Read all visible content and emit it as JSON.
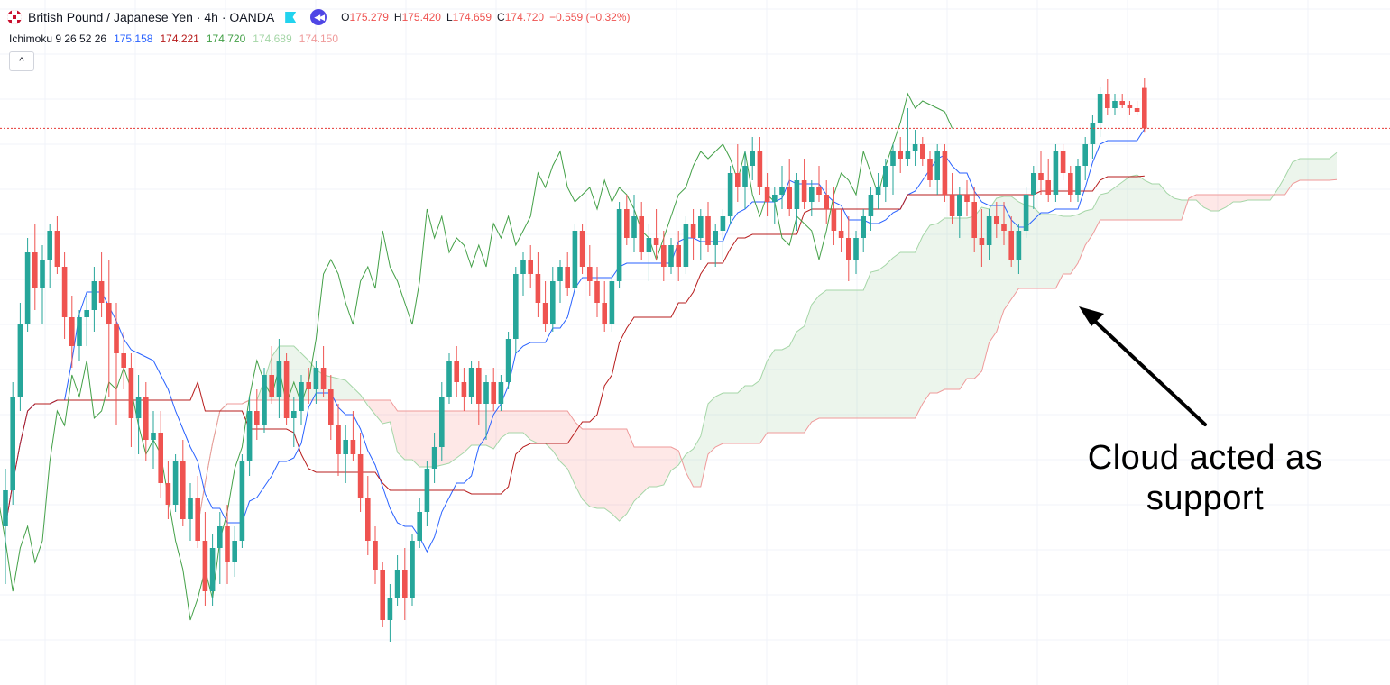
{
  "header": {
    "symbol": "British Pound / Japanese Yen · 4h · OANDA",
    "ohlc": {
      "o_label": "O",
      "o": "175.279",
      "h_label": "H",
      "h": "175.420",
      "l_label": "L",
      "l": "174.659",
      "c_label": "C",
      "c": "174.720",
      "change": "−0.559 (−0.32%)"
    },
    "icons": [
      "uk-flag-icon",
      "flag-icon",
      "replay-icon"
    ]
  },
  "indicator": {
    "name": "Ichimoku 9 26 52 26",
    "values": [
      {
        "text": "175.158",
        "color": "#2962ff"
      },
      {
        "text": "174.221",
        "color": "#b71c1c"
      },
      {
        "text": "174.720",
        "color": "#43a047"
      },
      {
        "text": "174.689",
        "color": "#a5d6a7"
      },
      {
        "text": "174.150",
        "color": "#ef9a9a"
      }
    ]
  },
  "collapse": {
    "glyph": "^",
    "icon": "chevron-up-icon"
  },
  "annotation": {
    "line1": "Cloud acted as",
    "line2": "support"
  },
  "colors": {
    "up": "#26a69a",
    "down": "#ef5350",
    "conversion": "#2962ff",
    "base": "#b71c1c",
    "lagging": "#43a047",
    "span_a": "#a5d6a7",
    "span_b": "#ef9a9a",
    "cloud_bull": "rgba(67,160,71,0.10)",
    "cloud_bear": "rgba(244,67,54,0.12)",
    "last_price_line": "#e53935"
  },
  "chart_data": {
    "type": "candlestick",
    "title": "British Pound / Japanese Yen · 4h · OANDA",
    "ylim": [
      167.0,
      176.5
    ],
    "grid": true,
    "last_price": 174.72,
    "candles": [
      [
        169.2,
        170.0,
        168.4,
        169.7
      ],
      [
        169.7,
        171.2,
        169.5,
        171.0
      ],
      [
        171.0,
        172.3,
        170.8,
        172.0
      ],
      [
        172.0,
        173.2,
        171.9,
        173.0
      ],
      [
        173.0,
        173.4,
        172.2,
        172.5
      ],
      [
        172.5,
        173.1,
        172.0,
        172.9
      ],
      [
        172.9,
        173.4,
        172.5,
        173.3
      ],
      [
        173.3,
        173.5,
        172.7,
        172.8
      ],
      [
        172.8,
        173.0,
        171.8,
        172.1
      ],
      [
        172.1,
        172.4,
        171.4,
        171.7
      ],
      [
        171.7,
        172.2,
        171.5,
        172.1
      ],
      [
        172.1,
        172.4,
        171.7,
        172.2
      ],
      [
        172.2,
        172.8,
        171.9,
        172.6
      ],
      [
        172.6,
        173.0,
        172.1,
        172.3
      ],
      [
        172.3,
        172.9,
        171.0,
        172.0
      ],
      [
        172.0,
        172.3,
        170.6,
        171.6
      ],
      [
        171.6,
        171.9,
        171.1,
        171.4
      ],
      [
        171.4,
        171.6,
        170.3,
        170.7
      ],
      [
        170.7,
        171.3,
        170.2,
        171.0
      ],
      [
        171.0,
        171.2,
        170.1,
        170.4
      ],
      [
        170.4,
        170.8,
        170.0,
        170.5
      ],
      [
        170.5,
        170.8,
        169.6,
        169.8
      ],
      [
        169.8,
        170.1,
        169.3,
        169.5
      ],
      [
        169.5,
        170.2,
        169.4,
        170.1
      ],
      [
        170.1,
        170.4,
        169.2,
        169.3
      ],
      [
        169.3,
        169.8,
        169.0,
        169.6
      ],
      [
        169.6,
        169.9,
        168.9,
        169.0
      ],
      [
        169.0,
        169.4,
        168.1,
        168.3
      ],
      [
        168.3,
        169.1,
        168.1,
        168.9
      ],
      [
        168.9,
        169.4,
        168.4,
        169.2
      ],
      [
        169.2,
        169.5,
        168.4,
        168.7
      ],
      [
        168.7,
        169.2,
        168.5,
        169.0
      ],
      [
        169.0,
        170.2,
        168.9,
        170.1
      ],
      [
        170.1,
        171.0,
        169.9,
        170.8
      ],
      [
        170.8,
        171.1,
        170.4,
        170.6
      ],
      [
        170.6,
        171.4,
        170.5,
        171.3
      ],
      [
        171.3,
        171.7,
        170.9,
        171.0
      ],
      [
        171.0,
        171.8,
        170.7,
        171.5
      ],
      [
        171.5,
        171.6,
        170.6,
        170.7
      ],
      [
        170.7,
        171.0,
        170.3,
        170.8
      ],
      [
        170.8,
        171.3,
        170.6,
        171.2
      ],
      [
        171.2,
        171.4,
        170.9,
        171.1
      ],
      [
        171.1,
        171.5,
        170.9,
        171.4
      ],
      [
        171.4,
        171.7,
        171.0,
        171.1
      ],
      [
        171.1,
        171.3,
        170.4,
        170.6
      ],
      [
        170.6,
        170.9,
        169.9,
        170.2
      ],
      [
        170.2,
        170.6,
        169.8,
        170.4
      ],
      [
        170.4,
        170.8,
        170.1,
        170.2
      ],
      [
        170.2,
        170.5,
        169.4,
        169.6
      ],
      [
        169.6,
        169.9,
        168.8,
        169.0
      ],
      [
        169.0,
        169.2,
        168.4,
        168.6
      ],
      [
        168.6,
        168.7,
        167.8,
        167.9
      ],
      [
        167.9,
        168.4,
        167.6,
        168.2
      ],
      [
        168.2,
        168.8,
        168.1,
        168.6
      ],
      [
        168.6,
        168.9,
        167.9,
        168.2
      ],
      [
        168.2,
        169.1,
        168.1,
        169.0
      ],
      [
        169.0,
        169.6,
        168.9,
        169.4
      ],
      [
        169.4,
        170.1,
        169.2,
        170.0
      ],
      [
        170.0,
        170.5,
        169.8,
        170.3
      ],
      [
        170.3,
        171.2,
        170.1,
        171.0
      ],
      [
        171.0,
        171.6,
        170.9,
        171.5
      ],
      [
        171.5,
        171.7,
        171.0,
        171.2
      ],
      [
        171.2,
        171.4,
        170.8,
        171.0
      ],
      [
        171.0,
        171.5,
        170.9,
        171.4
      ],
      [
        171.4,
        171.5,
        170.6,
        170.9
      ],
      [
        170.9,
        171.3,
        170.4,
        171.2
      ],
      [
        171.2,
        171.4,
        170.8,
        170.9
      ],
      [
        170.9,
        171.3,
        170.8,
        171.2
      ],
      [
        171.2,
        171.9,
        171.1,
        171.8
      ],
      [
        171.8,
        172.8,
        171.6,
        172.7
      ],
      [
        172.7,
        173.0,
        172.4,
        172.9
      ],
      [
        172.9,
        173.1,
        172.5,
        172.7
      ],
      [
        172.7,
        173.0,
        172.1,
        172.3
      ],
      [
        172.3,
        172.6,
        171.9,
        172.0
      ],
      [
        172.0,
        172.8,
        171.9,
        172.6
      ],
      [
        172.6,
        172.9,
        172.3,
        172.8
      ],
      [
        172.8,
        173.0,
        172.4,
        172.5
      ],
      [
        172.5,
        173.4,
        172.4,
        173.3
      ],
      [
        173.3,
        173.4,
        172.7,
        172.8
      ],
      [
        172.8,
        173.1,
        172.4,
        172.6
      ],
      [
        172.6,
        172.8,
        172.1,
        172.3
      ],
      [
        172.3,
        172.6,
        171.9,
        172.0
      ],
      [
        172.0,
        172.7,
        171.9,
        172.6
      ],
      [
        172.6,
        173.7,
        172.5,
        173.6
      ],
      [
        173.6,
        173.8,
        173.1,
        173.2
      ],
      [
        173.2,
        173.8,
        173.0,
        173.5
      ],
      [
        173.5,
        173.7,
        172.9,
        173.0
      ],
      [
        173.0,
        173.4,
        172.6,
        173.2
      ],
      [
        173.2,
        173.6,
        172.9,
        173.1
      ],
      [
        173.1,
        173.3,
        172.6,
        172.8
      ],
      [
        172.8,
        173.2,
        172.7,
        173.1
      ],
      [
        173.1,
        173.3,
        172.6,
        172.8
      ],
      [
        172.8,
        173.5,
        172.7,
        173.4
      ],
      [
        173.4,
        173.6,
        172.9,
        173.2
      ],
      [
        173.2,
        173.6,
        172.9,
        173.5
      ],
      [
        173.5,
        173.7,
        173.0,
        173.1
      ],
      [
        173.1,
        173.4,
        172.8,
        173.3
      ],
      [
        173.3,
        173.6,
        172.9,
        173.5
      ],
      [
        173.5,
        174.2,
        173.4,
        174.1
      ],
      [
        174.1,
        174.5,
        173.7,
        173.9
      ],
      [
        173.9,
        174.4,
        173.6,
        174.2
      ],
      [
        174.2,
        174.6,
        174.0,
        174.4
      ],
      [
        174.4,
        174.6,
        173.8,
        173.9
      ],
      [
        173.9,
        174.1,
        173.5,
        173.7
      ],
      [
        173.7,
        173.9,
        173.4,
        173.8
      ],
      [
        173.8,
        174.2,
        173.6,
        173.9
      ],
      [
        173.9,
        174.3,
        173.5,
        173.6
      ],
      [
        173.6,
        174.1,
        173.3,
        174.0
      ],
      [
        174.0,
        174.3,
        173.6,
        173.7
      ],
      [
        173.7,
        174.0,
        173.5,
        173.9
      ],
      [
        173.9,
        174.2,
        173.7,
        173.8
      ],
      [
        173.8,
        174.0,
        173.4,
        173.6
      ],
      [
        173.6,
        173.9,
        173.1,
        173.3
      ],
      [
        173.3,
        173.6,
        173.0,
        173.2
      ],
      [
        173.2,
        173.5,
        172.6,
        172.9
      ],
      [
        172.9,
        173.3,
        172.7,
        173.2
      ],
      [
        173.2,
        173.6,
        173.0,
        173.5
      ],
      [
        173.5,
        173.9,
        173.3,
        173.8
      ],
      [
        173.8,
        174.1,
        173.6,
        173.9
      ],
      [
        173.9,
        174.3,
        173.7,
        174.2
      ],
      [
        174.2,
        174.5,
        173.8,
        174.4
      ],
      [
        174.4,
        174.6,
        174.1,
        174.3
      ],
      [
        174.3,
        175.0,
        174.2,
        174.4
      ],
      [
        174.4,
        174.7,
        174.2,
        174.5
      ],
      [
        174.5,
        174.6,
        174.2,
        174.3
      ],
      [
        174.3,
        174.4,
        173.9,
        174.0
      ],
      [
        174.0,
        174.5,
        173.8,
        174.4
      ],
      [
        174.4,
        174.5,
        173.7,
        173.8
      ],
      [
        173.8,
        174.1,
        173.4,
        173.5
      ],
      [
        173.5,
        173.9,
        173.2,
        173.8
      ],
      [
        173.8,
        174.0,
        173.5,
        173.7
      ],
      [
        173.7,
        173.9,
        173.0,
        173.2
      ],
      [
        173.2,
        173.6,
        172.8,
        173.1
      ],
      [
        173.1,
        173.6,
        172.9,
        173.5
      ],
      [
        173.5,
        173.7,
        173.2,
        173.4
      ],
      [
        173.4,
        173.7,
        173.1,
        173.3
      ],
      [
        173.3,
        173.5,
        172.8,
        172.9
      ],
      [
        172.9,
        173.4,
        172.7,
        173.3
      ],
      [
        173.3,
        173.9,
        173.2,
        173.8
      ],
      [
        173.8,
        174.2,
        173.6,
        174.1
      ],
      [
        174.1,
        174.4,
        173.8,
        174.0
      ],
      [
        174.0,
        174.3,
        173.7,
        173.8
      ],
      [
        173.8,
        174.5,
        173.7,
        174.4
      ],
      [
        174.4,
        174.5,
        174.0,
        174.1
      ],
      [
        174.1,
        174.2,
        173.7,
        173.8
      ],
      [
        173.8,
        174.3,
        173.7,
        174.2
      ],
      [
        174.2,
        174.6,
        174.0,
        174.5
      ],
      [
        174.5,
        174.9,
        174.3,
        174.8
      ],
      [
        174.8,
        175.3,
        174.6,
        175.2
      ],
      [
        175.2,
        175.4,
        174.9,
        175.0
      ],
      [
        175.0,
        175.2,
        174.9,
        175.1
      ],
      [
        175.1,
        175.2,
        175.0,
        175.05
      ],
      [
        175.05,
        175.1,
        174.9,
        175.0
      ],
      [
        175.0,
        175.1,
        174.9,
        174.95
      ],
      [
        175.28,
        175.42,
        174.66,
        174.72
      ]
    ]
  }
}
